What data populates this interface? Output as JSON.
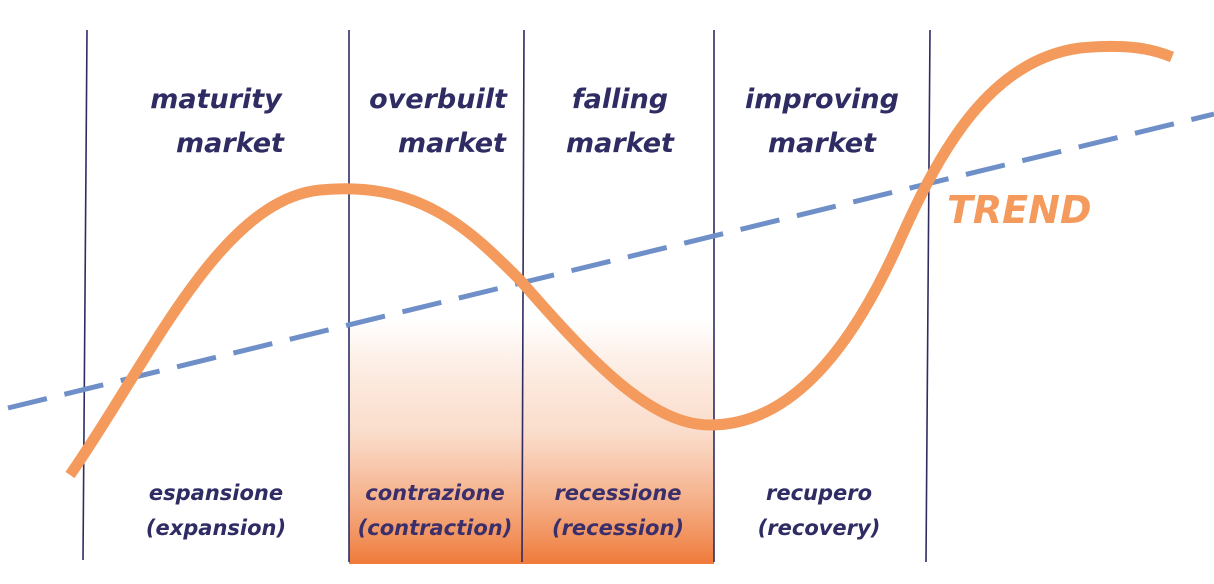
{
  "diagram": {
    "trend_label": "TREND",
    "colors": {
      "cycle_line": "#f39a5c",
      "trend_line": "#6f8fc8",
      "dividers": "#2e2c63",
      "text": "#2e2c63",
      "shading": "#ef7a3a"
    },
    "phases": [
      {
        "title_line1": "maturity",
        "title_line2": "market",
        "label_line1": "espansione",
        "label_line2": "(expansion)",
        "shaded": false
      },
      {
        "title_line1": "overbuilt",
        "title_line2": "market",
        "label_line1": "contrazione",
        "label_line2": "(contraction)",
        "shaded": true
      },
      {
        "title_line1": "falling",
        "title_line2": "market",
        "label_line1": "recessione",
        "label_line2": "(recession)",
        "shaded": true
      },
      {
        "title_line1": "improving",
        "title_line2": "market",
        "label_line1": "recupero",
        "label_line2": "(recovery)",
        "shaded": false
      }
    ]
  }
}
